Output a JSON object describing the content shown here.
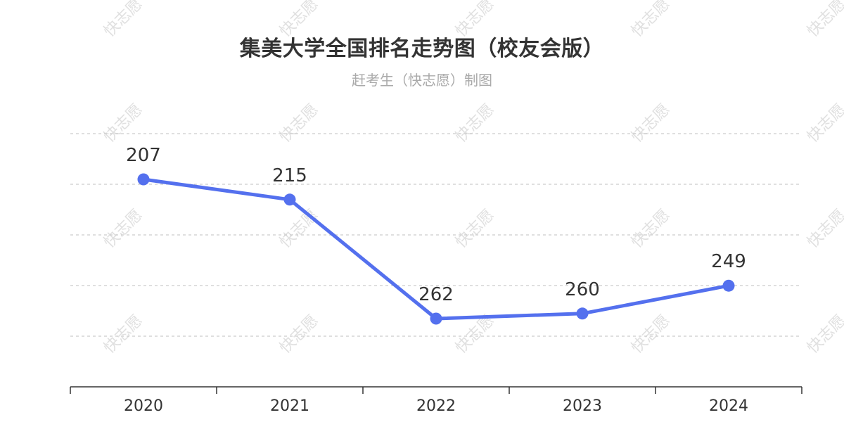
{
  "watermark": "快志愿",
  "chart_data": {
    "type": "line",
    "title": "集美大学全国排名走势图（校友会版）",
    "subtitle": "赶考生（快志愿）制图",
    "categories": [
      "2020",
      "2021",
      "2022",
      "2023",
      "2024"
    ],
    "series": [
      {
        "values": [
          207,
          215,
          262,
          260,
          249
        ]
      }
    ],
    "data_labels": [
      "207",
      "215",
      "262",
      "260",
      "249"
    ],
    "y_inverted": true,
    "xlabel": "",
    "ylabel": "",
    "grid": true,
    "legend": "none",
    "colors": {
      "line": "#5470ee",
      "grid": "#cccccc",
      "axis": "#333333",
      "watermark": "#d9d9d9"
    }
  }
}
